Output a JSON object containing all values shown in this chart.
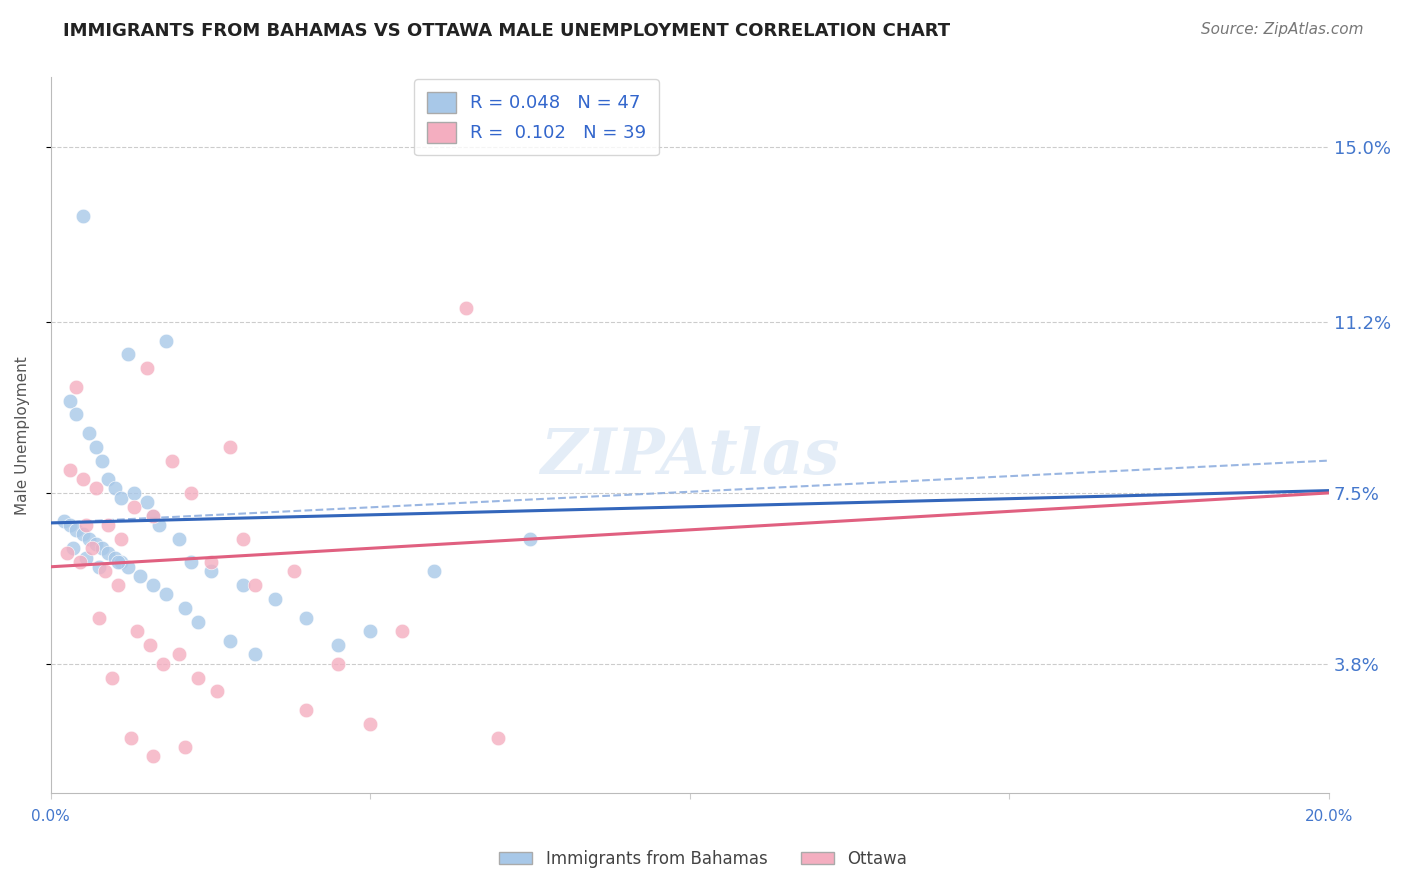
{
  "title": "IMMIGRANTS FROM BAHAMAS VS OTTAWA MALE UNEMPLOYMENT CORRELATION CHART",
  "source": "Source: ZipAtlas.com",
  "ylabel": "Male Unemployment",
  "ytick_values": [
    3.8,
    7.5,
    11.2,
    15.0
  ],
  "xlim": [
    0.0,
    20.0
  ],
  "ylim": [
    1.0,
    16.5
  ],
  "blue_R": "0.048",
  "blue_N": "47",
  "pink_R": "0.102",
  "pink_N": "39",
  "legend_label_blue": "Immigrants from Bahamas",
  "legend_label_pink": "Ottawa",
  "blue_color": "#a8c8e8",
  "pink_color": "#f4aec0",
  "blue_line_color": "#3366bb",
  "pink_line_color": "#e06080",
  "blue_dashed_color": "#88aadd",
  "watermark": "ZIPAtlas",
  "blue_scatter_x": [
    0.5,
    1.2,
    1.8,
    0.3,
    0.4,
    0.6,
    0.7,
    0.8,
    0.9,
    1.0,
    1.1,
    1.3,
    1.5,
    1.6,
    1.7,
    2.0,
    2.2,
    2.5,
    3.0,
    3.5,
    4.0,
    5.0,
    6.0,
    7.5,
    0.2,
    0.3,
    0.4,
    0.5,
    0.6,
    0.7,
    0.8,
    0.9,
    1.0,
    1.1,
    1.2,
    1.4,
    1.6,
    1.8,
    2.1,
    2.3,
    2.8,
    3.2,
    4.5,
    0.35,
    0.55,
    0.75,
    1.05
  ],
  "blue_scatter_y": [
    13.5,
    10.5,
    10.8,
    9.5,
    9.2,
    8.8,
    8.5,
    8.2,
    7.8,
    7.6,
    7.4,
    7.5,
    7.3,
    7.0,
    6.8,
    6.5,
    6.0,
    5.8,
    5.5,
    5.2,
    4.8,
    4.5,
    5.8,
    6.5,
    6.9,
    6.8,
    6.7,
    6.6,
    6.5,
    6.4,
    6.3,
    6.2,
    6.1,
    6.0,
    5.9,
    5.7,
    5.5,
    5.3,
    5.0,
    4.7,
    4.3,
    4.0,
    4.2,
    6.3,
    6.1,
    5.9,
    6.0
  ],
  "pink_scatter_x": [
    0.4,
    1.5,
    2.8,
    0.3,
    0.5,
    0.7,
    0.9,
    1.1,
    1.3,
    1.6,
    1.9,
    2.2,
    2.5,
    3.0,
    3.8,
    4.5,
    5.5,
    7.0,
    0.25,
    0.45,
    0.65,
    0.85,
    1.05,
    1.35,
    1.55,
    1.75,
    2.0,
    2.3,
    2.6,
    3.2,
    4.0,
    5.0,
    6.5,
    0.55,
    0.75,
    0.95,
    1.25,
    1.6,
    2.1
  ],
  "pink_scatter_y": [
    9.8,
    10.2,
    8.5,
    8.0,
    7.8,
    7.6,
    6.8,
    6.5,
    7.2,
    7.0,
    8.2,
    7.5,
    6.0,
    6.5,
    5.8,
    3.8,
    4.5,
    2.2,
    6.2,
    6.0,
    6.3,
    5.8,
    5.5,
    4.5,
    4.2,
    3.8,
    4.0,
    3.5,
    3.2,
    5.5,
    2.8,
    2.5,
    11.5,
    6.8,
    4.8,
    3.5,
    2.2,
    1.8,
    2.0
  ],
  "blue_line_x0": 0.0,
  "blue_line_y0": 6.85,
  "blue_line_x1": 20.0,
  "blue_line_y1": 7.55,
  "blue_dash_x0": 0.0,
  "blue_dash_y0": 6.85,
  "blue_dash_x1": 20.0,
  "blue_dash_y1": 8.2,
  "pink_line_x0": 0.0,
  "pink_line_y0": 5.9,
  "pink_line_x1": 20.0,
  "pink_line_y1": 7.5
}
